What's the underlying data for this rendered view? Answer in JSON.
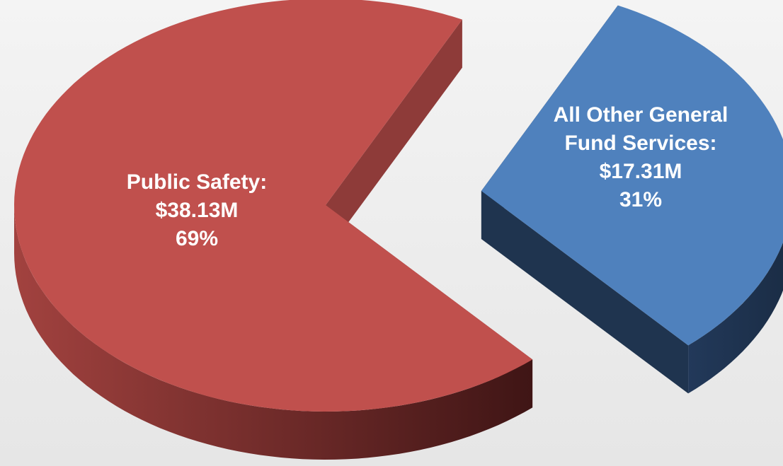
{
  "chart_data": {
    "type": "pie",
    "categories": [
      "Public Safety:",
      "All Other General Fund Services:"
    ],
    "values": [
      38.13,
      17.31
    ],
    "value_labels": [
      "$38.13M",
      "$17.31M"
    ],
    "shares": [
      69,
      31
    ],
    "share_labels": [
      "69%",
      "31%"
    ],
    "colors": [
      "#c0504d",
      "#4f81bd"
    ],
    "side_colors": [
      "#8e3b39",
      "#1f344f"
    ]
  }
}
